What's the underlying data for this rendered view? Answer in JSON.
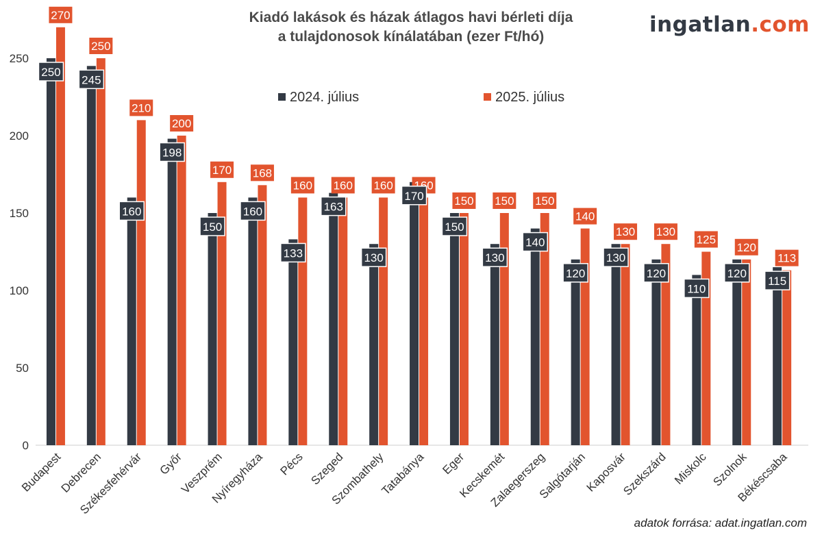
{
  "title_line1": "Kiadó lakások és házak átlagos havi bérleti díja",
  "title_line2": "a tulajdonosok kínálatában (ezer Ft/hó)",
  "logo": {
    "part1": "ingatlan",
    "part2": ".com"
  },
  "source": "adatok forrása: adat.ingatlan.com",
  "colors": {
    "series1": "#333a44",
    "series2": "#e2542e",
    "label_box_2024": "#333a44",
    "label_box_2025": "#e2542e"
  },
  "chart_data": {
    "type": "bar",
    "categories": [
      "Budapest",
      "Debrecen",
      "Székesfehérvár",
      "Győr",
      "Veszprém",
      "Nyíregyháza",
      "Pécs",
      "Szeged",
      "Szombathely",
      "Tatabánya",
      "Eger",
      "Kecskemét",
      "Zalaegerszeg",
      "Salgótarján",
      "Kaposvár",
      "Szekszárd",
      "Miskolc",
      "Szolnok",
      "Békéscsaba"
    ],
    "series": [
      {
        "name": "2024. július",
        "values": [
          250,
          245,
          160,
          198,
          150,
          160,
          133,
          163,
          130,
          170,
          150,
          130,
          140,
          120,
          130,
          120,
          110,
          120,
          115
        ]
      },
      {
        "name": "2025. július",
        "values": [
          270,
          250,
          210,
          200,
          170,
          168,
          160,
          160,
          160,
          160,
          150,
          150,
          150,
          140,
          130,
          130,
          125,
          120,
          113
        ]
      }
    ],
    "yticks": [
      0,
      50,
      100,
      150,
      200,
      250
    ],
    "ylim": [
      0,
      280
    ],
    "legend": "top-center",
    "grid": false
  }
}
